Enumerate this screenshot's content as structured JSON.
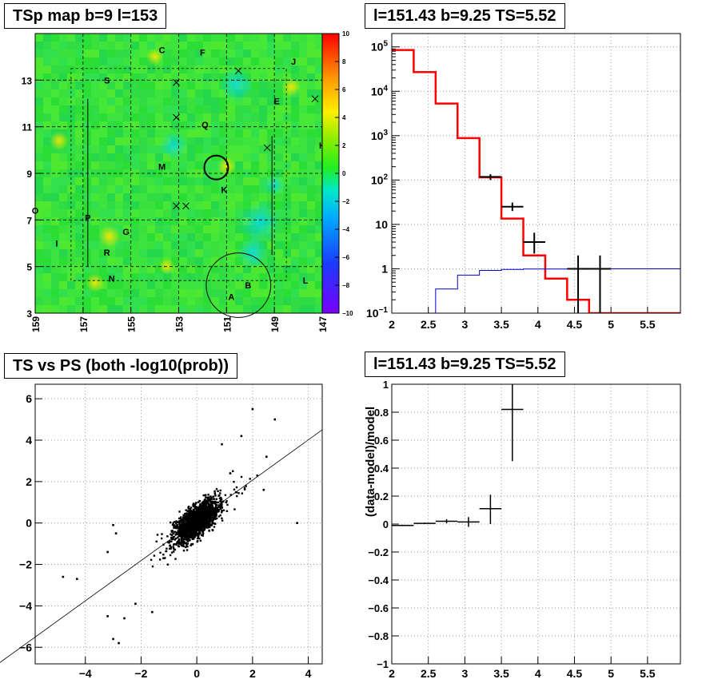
{
  "chart_data": [
    {
      "type": "heatmap",
      "title": "TSp map b=9 l=153",
      "xlim": [
        159,
        147
      ],
      "ylim": [
        3,
        15
      ],
      "x_ticks": [
        "159",
        "157",
        "155",
        "153",
        "151",
        "149",
        "147"
      ],
      "y_ticks": [
        "3",
        "5",
        "7",
        "9",
        "11",
        "13"
      ],
      "colorbar_ticks": [
        "10",
        "8",
        "6",
        "4",
        "2",
        "0",
        "-2",
        "-4",
        "-6",
        "-8",
        "-10"
      ],
      "colorbar_range": [
        -10,
        10
      ],
      "source_labels": [
        {
          "label": "C",
          "l": 153.7,
          "b": 14.3
        },
        {
          "label": "F",
          "l": 152.0,
          "b": 14.2
        },
        {
          "label": "J",
          "l": 148.2,
          "b": 13.8
        },
        {
          "label": "S",
          "l": 156.0,
          "b": 13.0
        },
        {
          "label": "E",
          "l": 148.9,
          "b": 12.1
        },
        {
          "label": "Q",
          "l": 151.9,
          "b": 11.1
        },
        {
          "label": "M",
          "l": 153.7,
          "b": 9.3
        },
        {
          "label": "K",
          "l": 151.1,
          "b": 8.3
        },
        {
          "label": "P",
          "l": 156.8,
          "b": 7.1
        },
        {
          "label": "G",
          "l": 155.2,
          "b": 6.5
        },
        {
          "label": "I",
          "l": 158.1,
          "b": 6.0
        },
        {
          "label": "R",
          "l": 156.0,
          "b": 5.6
        },
        {
          "label": "N",
          "l": 155.8,
          "b": 4.5
        },
        {
          "label": "B",
          "l": 150.1,
          "b": 4.2
        },
        {
          "label": "L",
          "l": 147.7,
          "b": 4.4
        },
        {
          "label": "A",
          "l": 150.8,
          "b": 3.7
        },
        {
          "label": "O",
          "l": 159.0,
          "b": 7.4
        },
        {
          "label": "H",
          "l": 147.0,
          "b": 10.2
        }
      ],
      "crosses": [
        {
          "l": 153.1,
          "b": 12.9
        },
        {
          "l": 150.5,
          "b": 13.4
        },
        {
          "l": 153.1,
          "b": 11.4
        },
        {
          "l": 149.3,
          "b": 10.1
        },
        {
          "l": 147.3,
          "b": 12.2
        },
        {
          "l": 153.1,
          "b": 7.6
        },
        {
          "l": 152.7,
          "b": 7.6
        }
      ],
      "circles": [
        {
          "l": 151.43,
          "b": 9.25,
          "r": 0.5
        },
        {
          "l": 150.5,
          "b": 4.2,
          "r": 1.35
        }
      ]
    },
    {
      "type": "line",
      "title": "l=151.43 b=9.25 TS=5.52",
      "x_ticks": [
        "2",
        "2.5",
        "3",
        "3.5",
        "4",
        "4.5",
        "5",
        "5.5"
      ],
      "xlim": [
        2,
        5.95
      ],
      "y_scale": "log",
      "ylim": [
        0.1,
        200000
      ],
      "y_ticks": [
        {
          "base": "10",
          "exp": "5"
        },
        {
          "base": "10",
          "exp": "4"
        },
        {
          "base": "10",
          "exp": "3"
        },
        {
          "base": "10",
          "exp": "2"
        },
        {
          "base": "10",
          "exp": ""
        },
        {
          "base": "1",
          "exp": ""
        },
        {
          "base": "10",
          "exp": "−1"
        }
      ],
      "grid": true,
      "series": [
        {
          "color": "#ff0000",
          "bin_edges": [
            2.0,
            2.3,
            2.6,
            2.9,
            3.2,
            3.5,
            3.8,
            4.1,
            4.4,
            4.7,
            5.0,
            5.3,
            5.6,
            5.95
          ],
          "values": [
            85000,
            27000,
            5300,
            880,
            115,
            13.5,
            2.0,
            0.6,
            0.2,
            0.1,
            0.1,
            0.1,
            0.1
          ]
        },
        {
          "color": "#0000cc",
          "bin_edges": [
            2.6,
            2.9,
            3.2,
            3.5,
            3.8,
            4.1,
            4.4,
            4.7,
            5.0,
            5.3,
            5.6,
            5.95
          ],
          "values": [
            0.35,
            0.72,
            0.92,
            0.97,
            0.99,
            0.99,
            1.0,
            1.0,
            1.0,
            1.0,
            1.0
          ]
        }
      ],
      "data_points": [
        {
          "x": 3.35,
          "xerr": 0.15,
          "y": 118,
          "ylo": 100,
          "yhi": 135
        },
        {
          "x": 3.65,
          "xerr": 0.15,
          "y": 25,
          "ylo": 20,
          "yhi": 31
        },
        {
          "x": 3.95,
          "xerr": 0.15,
          "y": 4,
          "ylo": 2.2,
          "yhi": 6.5
        },
        {
          "x": 4.55,
          "xerr": 0.15,
          "y": 1,
          "ylo": 0.1,
          "yhi": 2
        },
        {
          "x": 4.85,
          "xerr": 0.15,
          "y": 1,
          "ylo": 0.1,
          "yhi": 2
        }
      ]
    },
    {
      "type": "scatter",
      "title": "TS vs PS (both -log10(prob))",
      "xlim": [
        -5.8,
        4.5
      ],
      "ylim": [
        -6.8,
        6.7
      ],
      "x_ticks": [
        "−4",
        "−2",
        "0",
        "2",
        "4"
      ],
      "y_ticks": [
        "−6",
        "−4",
        "−2",
        "0",
        "2",
        "4",
        "6"
      ],
      "grid": true,
      "reference_line": {
        "slope": 1,
        "intercept": 0
      },
      "outliers": [
        [
          2.0,
          5.5
        ],
        [
          2.8,
          5.0
        ],
        [
          1.6,
          4.2
        ],
        [
          2.5,
          3.2
        ],
        [
          3.6,
          0.0
        ],
        [
          -2.8,
          -5.8
        ],
        [
          -3.0,
          -5.6
        ],
        [
          -3.2,
          -4.5
        ],
        [
          -4.8,
          -2.6
        ],
        [
          -4.3,
          -2.7
        ],
        [
          -2.6,
          -4.6
        ],
        [
          -2.2,
          -3.9
        ],
        [
          -1.6,
          -4.3
        ],
        [
          -3.2,
          -1.4
        ],
        [
          -3.0,
          -0.1
        ],
        [
          -2.9,
          -0.5
        ],
        [
          0.9,
          3.8
        ],
        [
          1.2,
          2.4
        ],
        [
          2.4,
          1.6
        ]
      ],
      "cluster_count": 1500
    },
    {
      "type": "line",
      "title": "l=151.43 b=9.25 TS=5.52",
      "ylabel": "(data-model)/model",
      "x_ticks": [
        "2",
        "2.5",
        "3",
        "3.5",
        "4",
        "4.5",
        "5",
        "5.5"
      ],
      "xlim": [
        2,
        5.95
      ],
      "y_ticks": [
        "1",
        "0.8",
        "0.6",
        "0.4",
        "0.2",
        "0",
        "−0.2",
        "−0.4",
        "−0.6",
        "−0.8",
        "−1"
      ],
      "ylim": [
        -1,
        1
      ],
      "grid": true,
      "data_points": [
        {
          "x": 2.15,
          "xerr": 0.15,
          "y": -0.01,
          "ylo": -0.015,
          "yhi": -0.005
        },
        {
          "x": 2.45,
          "xerr": 0.15,
          "y": 0.005,
          "ylo": 0.0,
          "yhi": 0.01
        },
        {
          "x": 2.75,
          "xerr": 0.15,
          "y": 0.02,
          "ylo": 0.005,
          "yhi": 0.035
        },
        {
          "x": 3.05,
          "xerr": 0.15,
          "y": 0.015,
          "ylo": -0.02,
          "yhi": 0.05
        },
        {
          "x": 3.35,
          "xerr": 0.15,
          "y": 0.11,
          "ylo": 0.0,
          "yhi": 0.21
        },
        {
          "x": 3.65,
          "xerr": 0.15,
          "y": 0.82,
          "ylo": 0.45,
          "yhi": 1.0
        }
      ]
    }
  ]
}
